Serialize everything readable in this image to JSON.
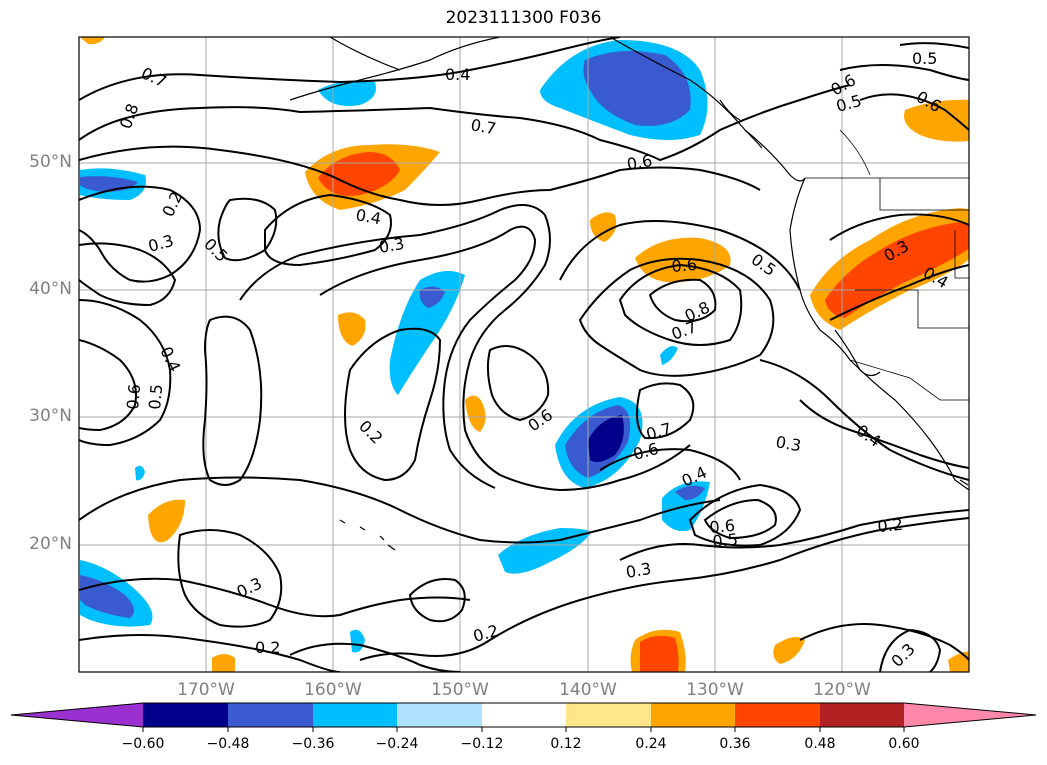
{
  "title": "2023111300 F036",
  "lat_labels": [
    "50°N",
    "40°N",
    "30°N",
    "20°N"
  ],
  "lon_labels": [
    "170°W",
    "160°W",
    "150°W",
    "140°W",
    "130°W",
    "120°W"
  ],
  "colorbar": {
    "ticks": [
      "−0.60",
      "−0.48",
      "−0.36",
      "−0.24",
      "−0.12",
      "0.12",
      "0.24",
      "0.36",
      "0.48",
      "0.60"
    ],
    "colors": [
      "#9b30d0",
      "#00008b",
      "#3a5bd0",
      "#00bfff",
      "#b0e2ff",
      "#ffffff",
      "#ffe68a",
      "#ffa500",
      "#ff4500",
      "#b22222",
      "#ff88aa"
    ]
  },
  "contour_labels": [
    "0.7",
    "0.8",
    "0.2",
    "0.3",
    "0.5",
    "0.4",
    "0.3",
    "0.4",
    "0.7",
    "0.6",
    "0.6",
    "0.5",
    "0.6",
    "0.5",
    "0.4",
    "0.3",
    "0.6",
    "0.8",
    "0.7",
    "0.5",
    "0.3",
    "0.4",
    "0.6",
    "0.5",
    "0.2",
    "0.6",
    "0.7",
    "0.6",
    "0.3",
    "0.4",
    "0.6",
    "0.5",
    "0.4",
    "0.2",
    "0.3",
    "0.3",
    "0.2",
    "0.2",
    "0.3"
  ]
}
